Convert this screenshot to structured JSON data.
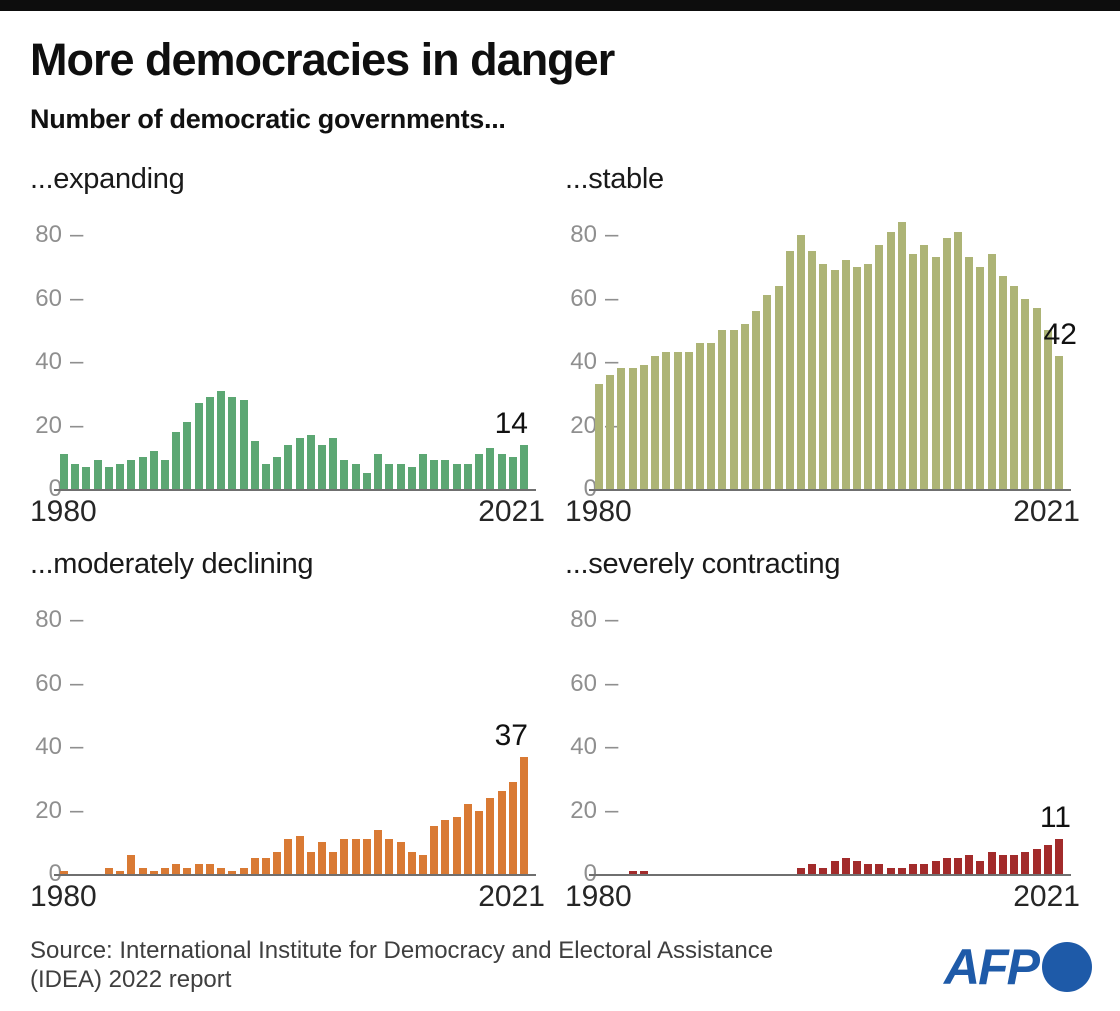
{
  "header": {
    "title": "More democracies in danger",
    "subtitle": "Number of democratic governments..."
  },
  "colors": {
    "expanding": "#5ca773",
    "stable": "#adb476",
    "moderately_declining": "#d97a34",
    "severely_contracting": "#a22b2b",
    "afp_blue": "#1e5aa8",
    "tick_gray": "#8f8f8f",
    "axis_gray": "#6f6f6f",
    "topbar_black": "#0d0d0d"
  },
  "chart_data": [
    {
      "type": "bar",
      "key": "expanding",
      "title": "...expanding",
      "color": "#5ca773",
      "x_range": [
        1980,
        2021
      ],
      "x_start_label": "1980",
      "x_end_label": "2021",
      "end_value_label": "14",
      "yticks": [
        0,
        20,
        40,
        60,
        80
      ],
      "ylim": [
        0,
        85
      ],
      "grid": false,
      "values": [
        11,
        8,
        7,
        9,
        7,
        8,
        9,
        10,
        12,
        9,
        18,
        21,
        27,
        29,
        31,
        29,
        28,
        15,
        8,
        10,
        14,
        16,
        17,
        14,
        16,
        9,
        8,
        5,
        11,
        8,
        8,
        7,
        11,
        9,
        9,
        8,
        8,
        11,
        13,
        11,
        10,
        14
      ]
    },
    {
      "type": "bar",
      "key": "stable",
      "title": "...stable",
      "color": "#adb476",
      "x_range": [
        1980,
        2021
      ],
      "x_start_label": "1980",
      "x_end_label": "2021",
      "end_value_label": "42",
      "yticks": [
        0,
        20,
        40,
        60,
        80
      ],
      "ylim": [
        0,
        85
      ],
      "grid": false,
      "values": [
        33,
        36,
        38,
        38,
        39,
        42,
        43,
        43,
        43,
        46,
        46,
        50,
        50,
        52,
        56,
        61,
        64,
        75,
        80,
        75,
        71,
        69,
        72,
        70,
        71,
        77,
        81,
        84,
        74,
        77,
        73,
        79,
        81,
        73,
        70,
        74,
        67,
        64,
        60,
        57,
        50,
        42
      ]
    },
    {
      "type": "bar",
      "key": "moderately_declining",
      "title": "...moderately declining",
      "color": "#d97a34",
      "x_range": [
        1980,
        2021
      ],
      "x_start_label": "1980",
      "x_end_label": "2021",
      "end_value_label": "37",
      "yticks": [
        0,
        20,
        40,
        60,
        80
      ],
      "ylim": [
        0,
        85
      ],
      "grid": false,
      "values": [
        1,
        0,
        0,
        0,
        2,
        1,
        6,
        2,
        1,
        2,
        3,
        2,
        3,
        3,
        2,
        1,
        2,
        5,
        5,
        7,
        11,
        12,
        7,
        10,
        7,
        11,
        11,
        11,
        14,
        11,
        10,
        7,
        6,
        15,
        17,
        18,
        22,
        20,
        24,
        26,
        29,
        37
      ]
    },
    {
      "type": "bar",
      "key": "severely_contracting",
      "title": "...severely contracting",
      "color": "#a22b2b",
      "x_range": [
        1980,
        2021
      ],
      "x_start_label": "1980",
      "x_end_label": "2021",
      "end_value_label": "11",
      "yticks": [
        0,
        20,
        40,
        60,
        80
      ],
      "ylim": [
        0,
        85
      ],
      "grid": false,
      "values": [
        0,
        0,
        0,
        1,
        1,
        0,
        0,
        0,
        0,
        0,
        0,
        0,
        0,
        0,
        0,
        0,
        0,
        0,
        2,
        3,
        2,
        4,
        5,
        4,
        3,
        3,
        2,
        2,
        3,
        3,
        4,
        5,
        5,
        6,
        4,
        7,
        6,
        6,
        7,
        8,
        9,
        11
      ]
    }
  ],
  "footer": {
    "source_line1": "Source: International Institute for Democracy and Electoral Assistance",
    "source_line2": "(IDEA) 2022 report",
    "logo_text": "AFP"
  }
}
